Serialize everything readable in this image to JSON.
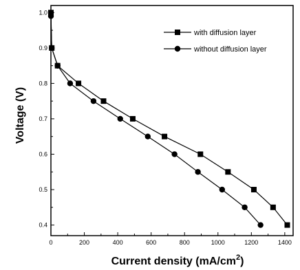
{
  "chart_data": {
    "type": "line",
    "xlabel": "Current density (mA/cm",
    "xlabel_sup": "2",
    "xlabel_close": ")",
    "ylabel": "Voltage (V)",
    "xlim": [
      0,
      1450
    ],
    "ylim": [
      0.37,
      1.02
    ],
    "xticks": [
      0,
      200,
      400,
      600,
      800,
      1000,
      1200,
      1400
    ],
    "yticks": [
      0.4,
      0.5,
      0.6,
      0.7,
      0.8,
      0.9,
      1.0
    ],
    "xtick_labels": [
      "0",
      "200",
      "400",
      "600",
      "800",
      "1000",
      "1200",
      "1400"
    ],
    "ytick_labels": [
      "0.4",
      "0.5",
      "0.6",
      "0.7",
      "0.8",
      "0.9",
      "1.0"
    ],
    "legend_position": "top-right",
    "grid": false,
    "series": [
      {
        "name": "with diffusion layer",
        "marker": "square",
        "color": "#000000",
        "x": [
          0,
          5,
          40,
          165,
          315,
          490,
          680,
          895,
          1060,
          1215,
          1330,
          1415
        ],
        "y": [
          1.0,
          0.9,
          0.85,
          0.8,
          0.75,
          0.7,
          0.65,
          0.6,
          0.55,
          0.5,
          0.45,
          0.4
        ]
      },
      {
        "name": "without diffusion layer",
        "marker": "circle",
        "color": "#000000",
        "x": [
          0,
          5,
          40,
          115,
          255,
          415,
          580,
          740,
          880,
          1025,
          1160,
          1255
        ],
        "y": [
          0.99,
          0.9,
          0.85,
          0.8,
          0.75,
          0.7,
          0.65,
          0.6,
          0.55,
          0.5,
          0.45,
          0.4
        ]
      }
    ]
  }
}
